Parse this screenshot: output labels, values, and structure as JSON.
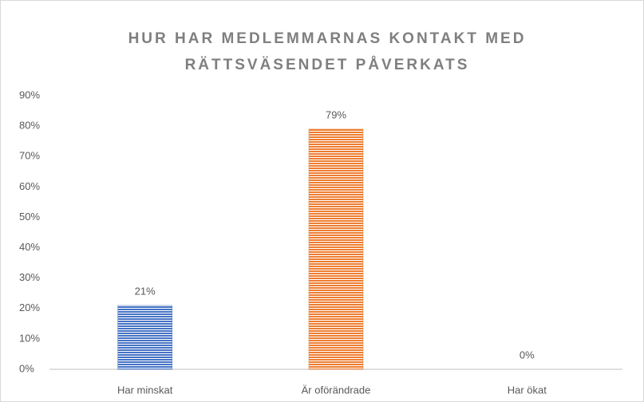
{
  "chart_data": {
    "type": "bar",
    "title": "HUR HAR MEDLEMMARNAS KONTAKT MED RÄTTSVÄSENDET PÅVERKATS",
    "categories": [
      "Har minskat",
      "Är oförändrade",
      "Har ökat"
    ],
    "values": [
      21,
      79,
      0
    ],
    "value_labels": [
      "21%",
      "79%",
      "0%"
    ],
    "colors": [
      "#4472c4",
      "#ed7d31",
      "#a5a5a5"
    ],
    "ylim": [
      0,
      90
    ],
    "yticks": [
      {
        "value": 0,
        "label": "0%"
      },
      {
        "value": 10,
        "label": "10%"
      },
      {
        "value": 20,
        "label": "20%"
      },
      {
        "value": 30,
        "label": "30%"
      },
      {
        "value": 40,
        "label": "40%"
      },
      {
        "value": 50,
        "label": "50%"
      },
      {
        "value": 60,
        "label": "60%"
      },
      {
        "value": 70,
        "label": "70%"
      },
      {
        "value": 80,
        "label": "80%"
      },
      {
        "value": 90,
        "label": "90%"
      }
    ],
    "grid": false
  }
}
